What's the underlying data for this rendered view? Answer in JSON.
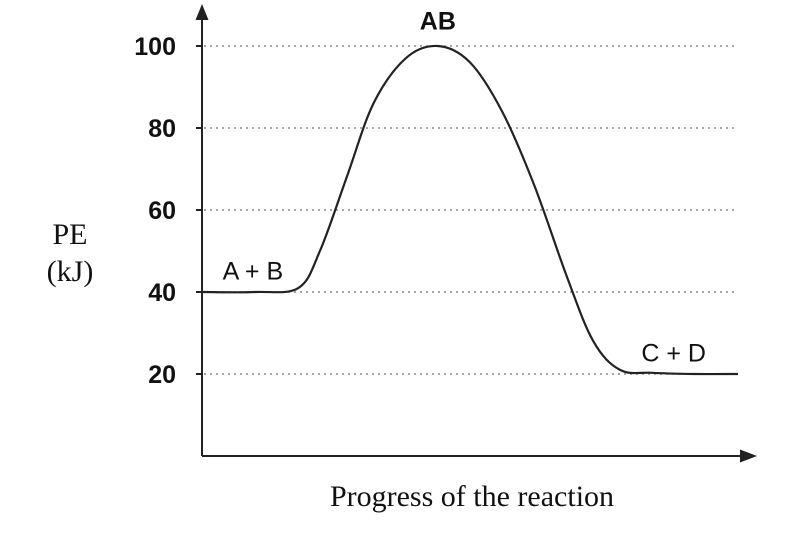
{
  "chart_data": {
    "type": "line",
    "title": "",
    "xlabel": "Progress of the reaction",
    "ylabel_line1": "PE",
    "ylabel_line2": "(kJ)",
    "yticks": [
      20,
      40,
      60,
      80,
      100
    ],
    "ytick_labels": [
      "20",
      "40",
      "60",
      "80",
      "100"
    ],
    "ylim": [
      0,
      108
    ],
    "grid": true,
    "series": [
      {
        "x": [
          0,
          10,
          18,
          22,
          27,
          32,
          38,
          44,
          50,
          56,
          62,
          68,
          73,
          78,
          84,
          92,
          100
        ],
        "y": [
          40,
          40,
          41,
          50,
          68,
          86,
          97,
          100,
          96,
          84,
          66,
          44,
          28,
          21,
          20.3,
          20,
          20
        ]
      }
    ],
    "annotations": [
      {
        "text": "A + B",
        "x": 9.5,
        "y": 43
      },
      {
        "text": "AB",
        "x": 44,
        "y": 104
      },
      {
        "text": "C + D",
        "x": 88,
        "y": 23
      }
    ],
    "colors": {
      "curve": "#222222",
      "grid": "#8a8a8a",
      "text": "#111111"
    }
  }
}
